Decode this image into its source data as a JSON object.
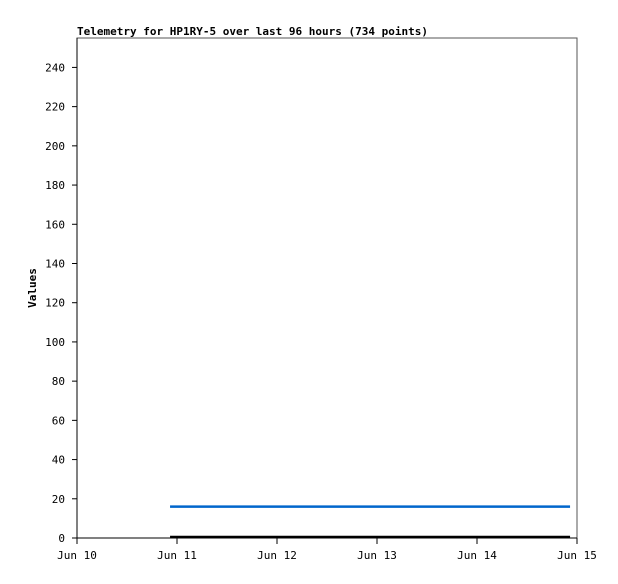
{
  "chart_data": {
    "type": "line",
    "title": "Telemetry for HP1RY-5 over last 96 hours (734 points)",
    "xlabel": "",
    "ylabel": "Values",
    "xlim": [
      "2024-06-10T00:00",
      "2024-06-15T00:00"
    ],
    "ylim": [
      0,
      255
    ],
    "x_ticks": [
      "Jun 10",
      "Jun 11",
      "Jun 12",
      "Jun 13",
      "Jun 14",
      "Jun 15"
    ],
    "y_ticks": [
      0,
      20,
      40,
      60,
      80,
      100,
      120,
      140,
      160,
      180,
      200,
      220,
      240
    ],
    "grid": false,
    "legend": "none",
    "series": [
      {
        "color": "#0066cc",
        "x": [
          "2024-06-10T22:20",
          "2024-06-14T22:20"
        ],
        "y": [
          16,
          16
        ]
      },
      {
        "color": "#000000",
        "x": [
          "2024-06-10T22:20",
          "2024-06-14T22:20"
        ],
        "y": [
          0,
          0
        ]
      }
    ]
  }
}
